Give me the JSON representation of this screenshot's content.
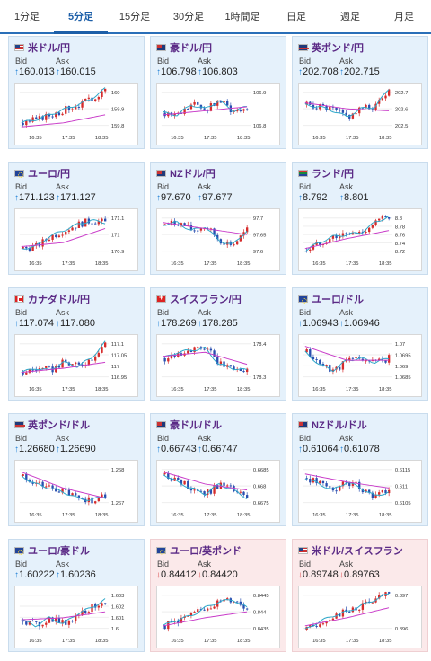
{
  "tabs": [
    "1分足",
    "5分足",
    "15分足",
    "30分足",
    "1時間足",
    "日足",
    "週足",
    "月足"
  ],
  "active_tab": 1,
  "labels": {
    "bid": "Bid",
    "ask": "Ask",
    "up_arrow": "↑",
    "down_arrow": "↓"
  },
  "colors": {
    "accent": "#1d5fa8",
    "up_candle": "#d62c2c",
    "down_candle": "#2a4fb0",
    "ma_fast": "#2aa6c8",
    "ma_slow": "#c83ac8",
    "card_up": "#e5f1fb",
    "card_down": "#fbe9ea"
  },
  "cards": [
    {
      "flag": "us",
      "title": "米ドル/円",
      "bid": "160.013",
      "ask": "160.015",
      "dir": "up",
      "chart": {
        "x_ticks": [
          "16:35",
          "17:35",
          "18:35"
        ],
        "y_ticks": [
          "160",
          "159.9",
          "159.8"
        ],
        "trend": [
          0.15,
          0.25,
          0.4,
          0.55,
          0.7,
          1.0
        ],
        "ma": [
          0.05,
          0.15,
          0.35
        ]
      }
    },
    {
      "flag": "au",
      "title": "豪ドル/円",
      "bid": "106.798",
      "ask": "106.803",
      "dir": "up",
      "chart": {
        "x_ticks": [
          "16:35",
          "17:35",
          "18:35"
        ],
        "y_ticks": [
          "106.9",
          "106.8"
        ],
        "trend": [
          0.4,
          0.35,
          0.6,
          0.5,
          0.7,
          0.45,
          0.55
        ],
        "ma": [
          0.35,
          0.45,
          0.55
        ]
      }
    },
    {
      "flag": "gb",
      "title": "英ポンド/円",
      "bid": "202.708",
      "ask": "202.715",
      "dir": "up",
      "chart": {
        "x_ticks": [
          "16:35",
          "17:35",
          "18:35"
        ],
        "y_ticks": [
          "202.7",
          "202.6",
          "202.5"
        ],
        "trend": [
          0.6,
          0.55,
          0.45,
          0.3,
          0.5,
          0.55,
          1.0
        ],
        "ma": [
          0.65,
          0.5,
          0.45
        ]
      }
    },
    {
      "flag": "eu",
      "title": "ユーロ/円",
      "bid": "171.123",
      "ask": "171.127",
      "dir": "up",
      "chart": {
        "x_ticks": [
          "16:35",
          "17:35",
          "18:35"
        ],
        "y_ticks": [
          "171.1",
          "171",
          "170.9"
        ],
        "trend": [
          0.15,
          0.2,
          0.45,
          0.6,
          0.75,
          0.85,
          0.8
        ],
        "ma": [
          0.2,
          0.3,
          0.65
        ]
      }
    },
    {
      "flag": "nz",
      "title": "NZドル/円",
      "bid": "97.670",
      "ask": "97.677",
      "dir": "up",
      "chart": {
        "x_ticks": [
          "16:35",
          "17:35",
          "18:35"
        ],
        "y_ticks": [
          "97.7",
          "97.65",
          "97.6"
        ],
        "trend": [
          0.75,
          0.8,
          0.6,
          0.7,
          0.35,
          0.25,
          0.6
        ],
        "ma": [
          0.8,
          0.65,
          0.5
        ]
      }
    },
    {
      "flag": "za",
      "title": "ランド/円",
      "bid": "8.792",
      "ask": "8.801",
      "dir": "up",
      "chart": {
        "x_ticks": [
          "16:35",
          "17:35",
          "18:35"
        ],
        "y_ticks": [
          "8.8",
          "8.78",
          "8.76",
          "8.74",
          "8.72"
        ],
        "trend": [
          0.1,
          0.3,
          0.45,
          0.5,
          0.55,
          0.8,
          0.95
        ],
        "ma": [
          0.15,
          0.4,
          0.6
        ]
      }
    },
    {
      "flag": "ca",
      "title": "カナダドル/円",
      "bid": "117.074",
      "ask": "117.080",
      "dir": "up",
      "chart": {
        "x_ticks": [
          "16:35",
          "17:35",
          "18:35"
        ],
        "y_ticks": [
          "117.1",
          "117.05",
          "117",
          "116.95"
        ],
        "trend": [
          0.2,
          0.3,
          0.25,
          0.45,
          0.35,
          0.55,
          0.95
        ],
        "ma": [
          0.2,
          0.3,
          0.45
        ]
      }
    },
    {
      "flag": "ch",
      "title": "スイスフラン/円",
      "bid": "178.269",
      "ask": "178.285",
      "dir": "up",
      "chart": {
        "x_ticks": [
          "16:35",
          "17:35",
          "18:35"
        ],
        "y_ticks": [
          "178.4",
          "178.3"
        ],
        "trend": [
          0.55,
          0.7,
          0.75,
          0.8,
          0.4,
          0.3,
          0.25
        ],
        "ma": [
          0.6,
          0.7,
          0.4
        ]
      }
    },
    {
      "flag": "eu",
      "title": "ユーロ/ドル",
      "bid": "1.06943",
      "ask": "1.06946",
      "dir": "up",
      "chart": {
        "x_ticks": [
          "16:35",
          "17:35",
          "18:35"
        ],
        "y_ticks": [
          "1.07",
          "1.0695",
          "1.069",
          "1.0685"
        ],
        "trend": [
          0.7,
          0.4,
          0.25,
          0.5,
          0.55,
          0.45,
          0.55
        ],
        "ma": [
          0.85,
          0.5,
          0.5
        ]
      }
    },
    {
      "flag": "gb",
      "title": "英ポンド/ドル",
      "bid": "1.26680",
      "ask": "1.26690",
      "dir": "up",
      "chart": {
        "x_ticks": [
          "16:35",
          "17:35",
          "18:35"
        ],
        "y_ticks": [
          "1.268",
          "1.267"
        ],
        "trend": [
          0.75,
          0.55,
          0.45,
          0.35,
          0.2,
          0.15,
          0.25
        ],
        "ma": [
          0.85,
          0.45,
          0.2
        ]
      }
    },
    {
      "flag": "au",
      "title": "豪ドル/ドル",
      "bid": "0.66743",
      "ask": "0.66747",
      "dir": "up",
      "chart": {
        "x_ticks": [
          "16:35",
          "17:35",
          "18:35"
        ],
        "y_ticks": [
          "0.6685",
          "0.668",
          "0.6675"
        ],
        "trend": [
          0.8,
          0.6,
          0.45,
          0.3,
          0.55,
          0.4,
          0.2
        ],
        "ma": [
          0.85,
          0.55,
          0.4
        ]
      }
    },
    {
      "flag": "nz",
      "title": "NZドル/ドル",
      "bid": "0.61064",
      "ask": "0.61078",
      "dir": "up",
      "chart": {
        "x_ticks": [
          "16:35",
          "17:35",
          "18:35"
        ],
        "y_ticks": [
          "0.6115",
          "0.611",
          "0.6105"
        ],
        "trend": [
          0.7,
          0.55,
          0.4,
          0.6,
          0.45,
          0.25,
          0.35
        ],
        "ma": [
          0.8,
          0.6,
          0.45
        ]
      }
    },
    {
      "flag": "eu",
      "title": "ユーロ/豪ドル",
      "bid": "1.60222",
      "ask": "1.60236",
      "dir": "up",
      "chart": {
        "x_ticks": [
          "16:35",
          "17:35",
          "18:35"
        ],
        "y_ticks": [
          "1.603",
          "1.602",
          "1.601",
          "1.6"
        ],
        "trend": [
          0.3,
          0.15,
          0.35,
          0.2,
          0.45,
          0.6,
          0.8
        ],
        "ma": [
          0.3,
          0.35,
          0.5
        ]
      }
    },
    {
      "flag": "eu",
      "title": "ユーロ/英ポンド",
      "bid": "0.84412",
      "ask": "0.84420",
      "dir": "down",
      "chart": {
        "x_ticks": [
          "16:35",
          "17:35",
          "18:35"
        ],
        "y_ticks": [
          "0.8445",
          "0.844",
          "0.8435"
        ],
        "trend": [
          0.15,
          0.3,
          0.4,
          0.6,
          0.75,
          0.8,
          0.6
        ],
        "ma": [
          0.15,
          0.35,
          0.5
        ]
      }
    },
    {
      "flag": "us",
      "title": "米ドル/スイスフラン",
      "bid": "0.89748",
      "ask": "0.89763",
      "dir": "down",
      "chart": {
        "x_ticks": [
          "16:35",
          "17:35",
          "18:35"
        ],
        "y_ticks": [
          "0.897",
          "0.896"
        ],
        "trend": [
          0.05,
          0.25,
          0.4,
          0.5,
          0.65,
          0.8,
          0.95
        ],
        "ma": [
          0.15,
          0.35,
          0.6
        ]
      }
    }
  ]
}
